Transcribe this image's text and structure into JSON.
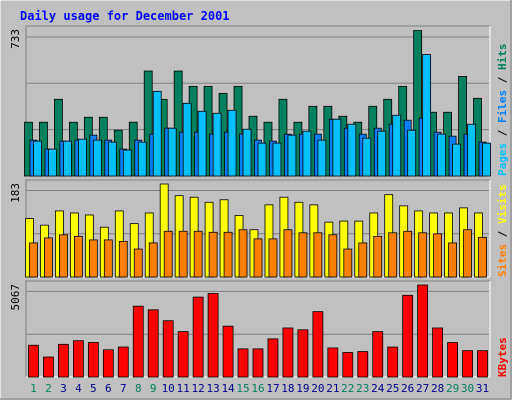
{
  "title": "Daily usage for December 2001",
  "colors": {
    "background": "#C0C0C0",
    "border_light": "#FFFFFF",
    "border_dark": "#808080",
    "title": "#0000FF",
    "hits": "#00805C",
    "files": "#0080FF",
    "pages": "#00C0FF",
    "visits": "#FFFF00",
    "sites": "#FF8000",
    "kbytes": "#FF0000",
    "weekday_label": "#00008B",
    "weekend_label": "#00805C"
  },
  "chart_data": [
    {
      "type": "bar",
      "panel": "hits_files_pages",
      "ymax_label": "733",
      "ylim": [
        0,
        733
      ],
      "legend": [
        "Pages",
        "Files",
        "Hits"
      ],
      "series": [
        {
          "name": "Hits",
          "values": [
            270,
            270,
            385,
            270,
            295,
            295,
            230,
            270,
            527,
            385,
            527,
            450,
            450,
            415,
            450,
            300,
            270,
            385,
            270,
            350,
            350,
            300,
            270,
            350,
            385,
            450,
            730,
            320,
            320,
            500,
            390
          ]
        },
        {
          "name": "Files",
          "values": [
            180,
            135,
            175,
            180,
            205,
            180,
            135,
            180,
            210,
            240,
            220,
            220,
            210,
            220,
            210,
            180,
            175,
            210,
            210,
            210,
            285,
            240,
            210,
            240,
            260,
            280,
            290,
            220,
            200,
            210,
            170
          ]
        },
        {
          "name": "Pages",
          "values": [
            175,
            135,
            175,
            185,
            180,
            170,
            130,
            170,
            425,
            240,
            365,
            325,
            315,
            330,
            235,
            165,
            165,
            205,
            225,
            180,
            285,
            260,
            190,
            225,
            305,
            230,
            610,
            210,
            160,
            260,
            165
          ]
        }
      ]
    },
    {
      "type": "bar",
      "panel": "visits_sites",
      "ymax_label": "183",
      "ylim": [
        0,
        183
      ],
      "legend": [
        "Sites",
        "Visits"
      ],
      "series": [
        {
          "name": "Visits",
          "values": [
            115,
            102,
            130,
            126,
            122,
            98,
            130,
            105,
            126,
            183,
            160,
            157,
            147,
            152,
            121,
            93,
            142,
            157,
            147,
            142,
            108,
            110,
            110,
            126,
            162,
            140,
            130,
            126,
            126,
            136,
            126
          ]
        },
        {
          "name": "Sites",
          "values": [
            67,
            77,
            83,
            80,
            73,
            73,
            70,
            55,
            67,
            90,
            90,
            90,
            88,
            88,
            93,
            75,
            75,
            93,
            87,
            87,
            83,
            55,
            67,
            80,
            87,
            90,
            87,
            85,
            67,
            93,
            78
          ]
        }
      ]
    },
    {
      "type": "bar",
      "panel": "kbytes",
      "ymax_label": "5067",
      "ylim": [
        0,
        5067
      ],
      "legend": [
        "KBytes"
      ],
      "series": [
        {
          "name": "KBytes",
          "values": [
            1750,
            1100,
            1800,
            2000,
            1900,
            1500,
            1650,
            3900,
            3700,
            3100,
            2500,
            4400,
            4600,
            2800,
            1550,
            1550,
            2100,
            2700,
            2600,
            3600,
            1600,
            1350,
            1400,
            2500,
            1650,
            4500,
            5067,
            2700,
            1900,
            1450,
            1450
          ]
        }
      ]
    }
  ],
  "x_labels": [
    "1",
    "2",
    "3",
    "4",
    "5",
    "6",
    "7",
    "8",
    "9",
    "10",
    "11",
    "12",
    "13",
    "14",
    "15",
    "16",
    "17",
    "18",
    "19",
    "20",
    "21",
    "22",
    "23",
    "24",
    "25",
    "26",
    "27",
    "28",
    "29",
    "30",
    "31"
  ],
  "weekend_days": [
    1,
    2,
    8,
    9,
    15,
    16,
    22,
    23,
    29,
    30
  ]
}
